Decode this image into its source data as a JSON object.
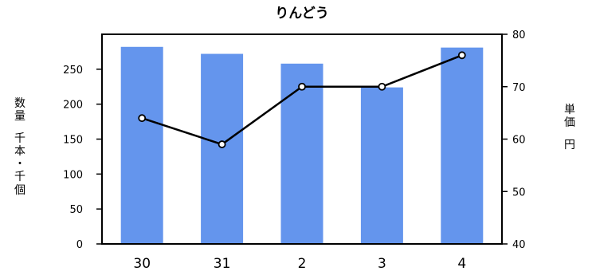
{
  "chart_data": {
    "type": "bar+line",
    "title": "りんどう",
    "categories": [
      "30",
      "31",
      "2",
      "3",
      "4"
    ],
    "series": [
      {
        "type": "bar",
        "axis": "left",
        "values": [
          282,
          272,
          258,
          224,
          281
        ]
      },
      {
        "type": "line",
        "axis": "right",
        "values": [
          64,
          59,
          70,
          70,
          76
        ]
      }
    ],
    "ylabel_left": "数量　千本・千個",
    "ylabel_right": "単価　円",
    "ylim_left": [
      0,
      300
    ],
    "yticks_left": [
      "0",
      "50",
      "100",
      "150",
      "200",
      "250"
    ],
    "ylim_right": [
      40,
      80
    ],
    "yticks_right": [
      "40",
      "50",
      "60",
      "70",
      "80"
    ],
    "grid": false,
    "legend": "none"
  },
  "colors": {
    "bar": "#6495ED",
    "line": "#000000",
    "marker_fill": "#ffffff",
    "axis": "#000000"
  }
}
